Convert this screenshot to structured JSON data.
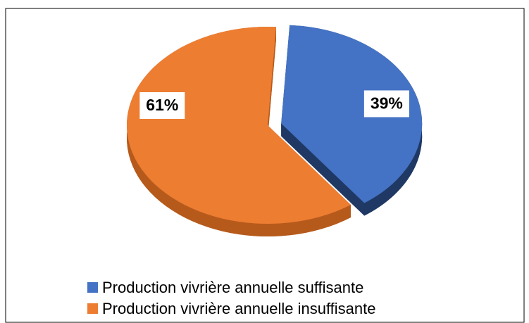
{
  "chart_data": {
    "type": "pie",
    "categories": [
      "Production vivrière annuelle suffisante",
      "Production vivrière annuelle insuffisante"
    ],
    "values": [
      39,
      61
    ],
    "value_labels": [
      "39%",
      "61%"
    ],
    "colors": [
      "#4472c4",
      "#ed7d31"
    ],
    "side_colors": [
      "#1f3864",
      "#b65a1c"
    ],
    "exploded": [
      true,
      false
    ],
    "legend": "bottom"
  }
}
